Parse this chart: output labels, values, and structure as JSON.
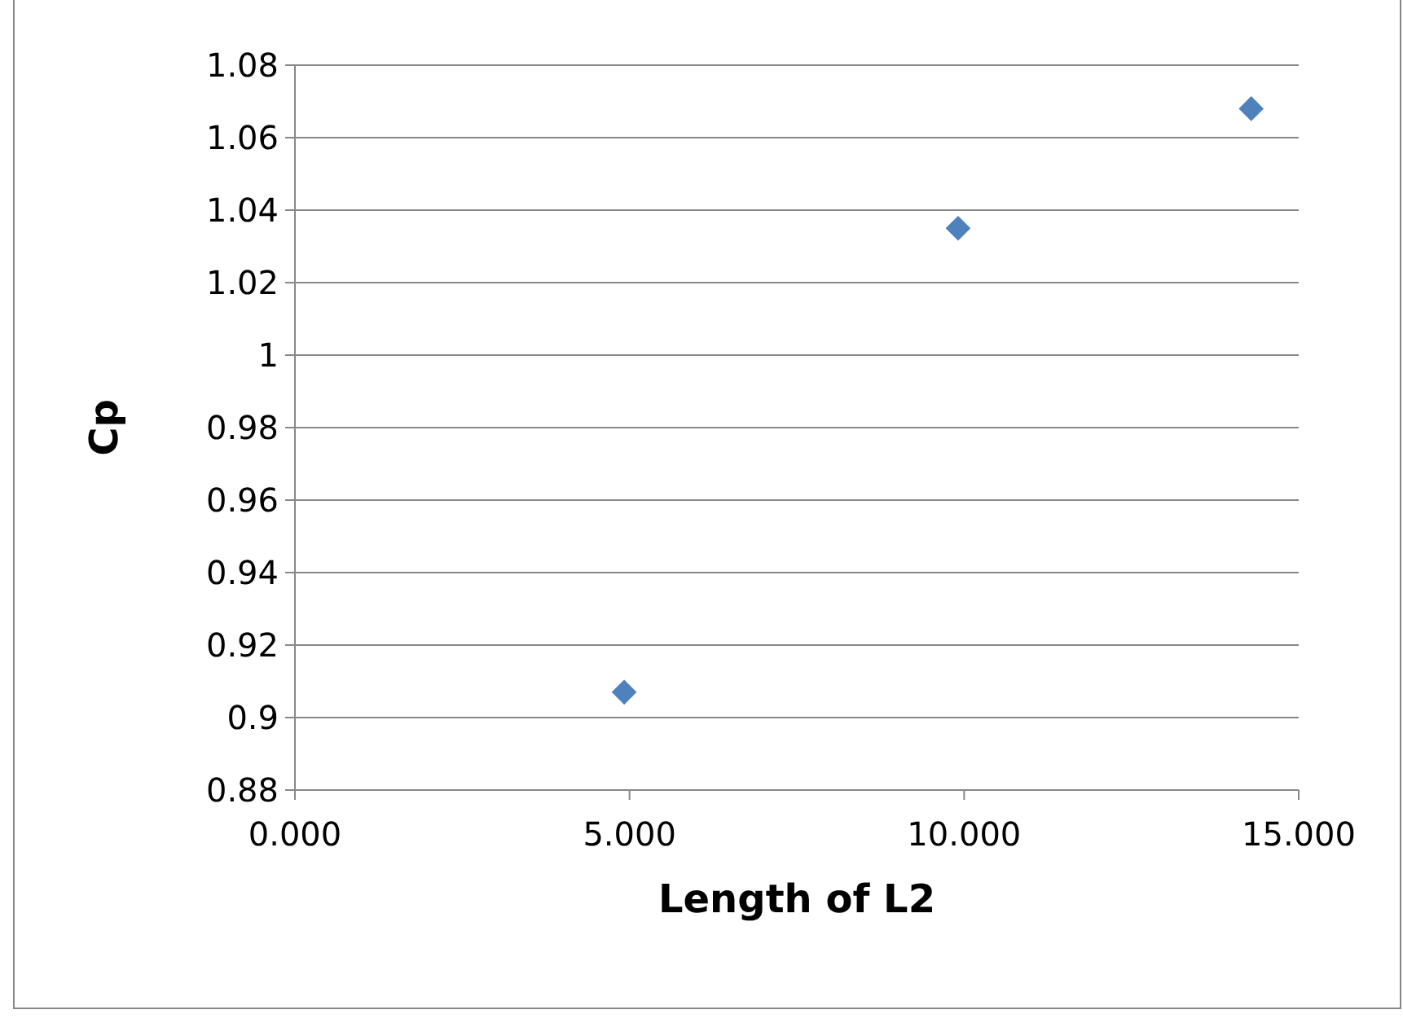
{
  "chart_data": {
    "type": "scatter",
    "xlabel": "Length of L2",
    "ylabel": "Cp",
    "x": [
      4.92,
      9.91,
      14.29
    ],
    "series": [
      {
        "color": "#4f81bd",
        "values": [
          0.907,
          1.035,
          1.068
        ]
      }
    ],
    "xlim": [
      0,
      15
    ],
    "xticks": [
      {
        "value": 0,
        "label": "0.000"
      },
      {
        "value": 5,
        "label": "5.000"
      },
      {
        "value": 10,
        "label": "10.000"
      },
      {
        "value": 15,
        "label": "15.000"
      }
    ],
    "ylim": [
      0.88,
      1.08
    ],
    "yticks": [
      0.88,
      0.9,
      0.92,
      0.94,
      0.96,
      0.98,
      1,
      1.02,
      1.04,
      1.06,
      1.08
    ],
    "grid": "y",
    "marker": "diamond"
  }
}
